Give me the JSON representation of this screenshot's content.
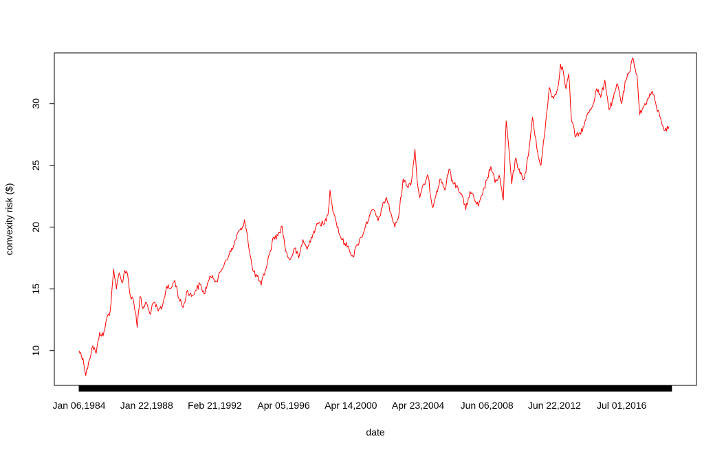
{
  "chart_data": {
    "type": "line",
    "title": "",
    "xlabel": "date",
    "ylabel": "convexity risk ($)",
    "xlim": [
      "1984-01-06",
      "2019-07-01"
    ],
    "ylim": [
      7.2,
      34.1
    ],
    "y_ticks": [
      10,
      15,
      20,
      25,
      30
    ],
    "x_tick_labels": [
      {
        "date": "1984-01-06",
        "label": "Jan 06,1984"
      },
      {
        "date": "1988-01-22",
        "label": "Jan 22,1988"
      },
      {
        "date": "1992-02-21",
        "label": "Feb 21,1992"
      },
      {
        "date": "1996-04-05",
        "label": "Apr 05,1996"
      },
      {
        "date": "2000-04-14",
        "label": "Apr 14,2000"
      },
      {
        "date": "2004-04-23",
        "label": "Apr 23,2004"
      },
      {
        "date": "2008-06-06",
        "label": "Jun 06,2008"
      },
      {
        "date": "2012-06-22",
        "label": "Jun 22,2012"
      },
      {
        "date": "2016-07-01",
        "label": "Jul 01,2016"
      }
    ],
    "grid": false,
    "dense_minor_ticks": true,
    "series": [
      {
        "color": "#ff0000",
        "points": [
          [
            "1984-01-06",
            10.0
          ],
          [
            "1984-04-01",
            9.4
          ],
          [
            "1984-06-01",
            8.0
          ],
          [
            "1984-08-01",
            9.1
          ],
          [
            "1984-11-01",
            10.4
          ],
          [
            "1985-01-15",
            9.8
          ],
          [
            "1985-04-01",
            11.5
          ],
          [
            "1985-06-15",
            11.2
          ],
          [
            "1985-09-01",
            12.6
          ],
          [
            "1985-11-15",
            13.2
          ],
          [
            "1986-02-01",
            16.6
          ],
          [
            "1986-04-01",
            15.0
          ],
          [
            "1986-06-01",
            16.3
          ],
          [
            "1986-08-01",
            15.5
          ],
          [
            "1986-10-01",
            16.5
          ],
          [
            "1986-12-01",
            16.2
          ],
          [
            "1987-02-01",
            14.4
          ],
          [
            "1987-04-01",
            14.2
          ],
          [
            "1987-06-01",
            13.0
          ],
          [
            "1987-07-01",
            11.9
          ],
          [
            "1987-09-01",
            14.4
          ],
          [
            "1987-11-01",
            13.4
          ],
          [
            "1988-01-15",
            13.9
          ],
          [
            "1988-04-01",
            13.0
          ],
          [
            "1988-07-01",
            13.9
          ],
          [
            "1988-10-01",
            13.2
          ],
          [
            "1989-01-01",
            13.6
          ],
          [
            "1989-04-01",
            15.2
          ],
          [
            "1989-07-01",
            15.0
          ],
          [
            "1989-10-01",
            15.7
          ],
          [
            "1990-01-01",
            14.2
          ],
          [
            "1990-04-01",
            13.5
          ],
          [
            "1990-07-01",
            14.9
          ],
          [
            "1990-10-01",
            14.4
          ],
          [
            "1991-01-01",
            14.9
          ],
          [
            "1991-04-01",
            15.4
          ],
          [
            "1991-07-01",
            14.6
          ],
          [
            "1991-10-01",
            15.6
          ],
          [
            "1992-01-01",
            16.1
          ],
          [
            "1992-04-01",
            15.6
          ],
          [
            "1992-07-01",
            16.4
          ],
          [
            "1992-10-01",
            17.2
          ],
          [
            "1993-01-01",
            17.8
          ],
          [
            "1993-04-01",
            18.4
          ],
          [
            "1993-07-01",
            19.5
          ],
          [
            "1993-10-01",
            19.8
          ],
          [
            "1993-12-01",
            20.6
          ],
          [
            "1994-02-01",
            19.4
          ],
          [
            "1994-04-01",
            17.8
          ],
          [
            "1994-06-01",
            16.5
          ],
          [
            "1994-09-01",
            16.0
          ],
          [
            "1994-12-01",
            15.3
          ],
          [
            "1995-03-01",
            16.5
          ],
          [
            "1995-06-01",
            17.8
          ],
          [
            "1995-09-01",
            19.2
          ],
          [
            "1995-12-01",
            19.3
          ],
          [
            "1996-03-01",
            20.1
          ],
          [
            "1996-05-01",
            18.5
          ],
          [
            "1996-07-01",
            17.6
          ],
          [
            "1996-09-01",
            17.4
          ],
          [
            "1996-12-01",
            18.3
          ],
          [
            "1997-03-01",
            17.5
          ],
          [
            "1997-06-01",
            19.0
          ],
          [
            "1997-09-01",
            18.2
          ],
          [
            "1997-12-01",
            19.2
          ],
          [
            "1998-03-01",
            19.9
          ],
          [
            "1998-06-01",
            20.4
          ],
          [
            "1998-09-01",
            20.2
          ],
          [
            "1998-12-01",
            21.0
          ],
          [
            "1999-01-15",
            23.0
          ],
          [
            "1999-03-01",
            21.8
          ],
          [
            "1999-06-01",
            20.4
          ],
          [
            "1999-09-01",
            19.2
          ],
          [
            "1999-12-01",
            18.7
          ],
          [
            "2000-03-01",
            18.3
          ],
          [
            "2000-06-01",
            17.6
          ],
          [
            "2000-09-01",
            18.6
          ],
          [
            "2000-12-01",
            19.2
          ],
          [
            "2001-03-01",
            20.1
          ],
          [
            "2001-06-01",
            21.0
          ],
          [
            "2001-09-01",
            21.4
          ],
          [
            "2001-12-01",
            20.5
          ],
          [
            "2002-03-01",
            21.6
          ],
          [
            "2002-06-01",
            22.4
          ],
          [
            "2002-09-01",
            21.2
          ],
          [
            "2002-12-01",
            20.0
          ],
          [
            "2003-03-01",
            21.0
          ],
          [
            "2003-06-01",
            23.9
          ],
          [
            "2003-09-01",
            23.3
          ],
          [
            "2003-12-01",
            23.7
          ],
          [
            "2004-02-15",
            26.3
          ],
          [
            "2004-04-01",
            23.8
          ],
          [
            "2004-06-01",
            22.4
          ],
          [
            "2004-09-01",
            23.5
          ],
          [
            "2004-12-01",
            24.1
          ],
          [
            "2005-03-01",
            21.6
          ],
          [
            "2005-06-01",
            22.9
          ],
          [
            "2005-09-01",
            23.9
          ],
          [
            "2005-12-01",
            23.0
          ],
          [
            "2006-03-01",
            24.7
          ],
          [
            "2006-06-01",
            23.5
          ],
          [
            "2006-09-01",
            23.3
          ],
          [
            "2006-12-01",
            22.7
          ],
          [
            "2007-03-01",
            21.4
          ],
          [
            "2007-06-01",
            22.9
          ],
          [
            "2007-09-01",
            22.3
          ],
          [
            "2007-12-01",
            21.7
          ],
          [
            "2008-03-01",
            22.6
          ],
          [
            "2008-06-01",
            23.8
          ],
          [
            "2008-09-01",
            24.9
          ],
          [
            "2008-12-01",
            23.6
          ],
          [
            "2009-03-01",
            24.2
          ],
          [
            "2009-06-01",
            22.2
          ],
          [
            "2009-08-01",
            28.6
          ],
          [
            "2009-10-01",
            26.3
          ],
          [
            "2009-12-01",
            23.5
          ],
          [
            "2010-03-01",
            25.6
          ],
          [
            "2010-06-01",
            24.3
          ],
          [
            "2010-09-01",
            23.9
          ],
          [
            "2010-12-01",
            25.8
          ],
          [
            "2011-03-01",
            28.9
          ],
          [
            "2011-06-01",
            26.4
          ],
          [
            "2011-09-01",
            25.0
          ],
          [
            "2011-12-01",
            27.9
          ],
          [
            "2012-03-01",
            31.3
          ],
          [
            "2012-06-01",
            30.4
          ],
          [
            "2012-09-01",
            31.2
          ],
          [
            "2012-11-01",
            33.2
          ],
          [
            "2013-01-01",
            32.6
          ],
          [
            "2013-03-01",
            31.2
          ],
          [
            "2013-05-01",
            32.4
          ],
          [
            "2013-07-01",
            28.6
          ],
          [
            "2013-10-01",
            27.3
          ],
          [
            "2014-01-01",
            27.6
          ],
          [
            "2014-04-01",
            28.2
          ],
          [
            "2014-07-01",
            29.3
          ],
          [
            "2014-10-01",
            29.8
          ],
          [
            "2015-01-01",
            31.2
          ],
          [
            "2015-04-01",
            30.5
          ],
          [
            "2015-07-01",
            31.9
          ],
          [
            "2015-10-01",
            29.5
          ],
          [
            "2016-01-01",
            30.4
          ],
          [
            "2016-04-01",
            31.6
          ],
          [
            "2016-07-01",
            30.0
          ],
          [
            "2016-10-01",
            31.9
          ],
          [
            "2017-01-01",
            32.6
          ],
          [
            "2017-03-01",
            33.7
          ],
          [
            "2017-06-01",
            32.3
          ],
          [
            "2017-08-01",
            29.1
          ],
          [
            "2017-11-01",
            29.8
          ],
          [
            "2018-02-01",
            30.4
          ],
          [
            "2018-05-01",
            31.0
          ],
          [
            "2018-08-01",
            29.7
          ],
          [
            "2018-11-01",
            28.8
          ],
          [
            "2019-02-01",
            27.8
          ],
          [
            "2019-05-01",
            28.1
          ]
        ]
      }
    ]
  }
}
